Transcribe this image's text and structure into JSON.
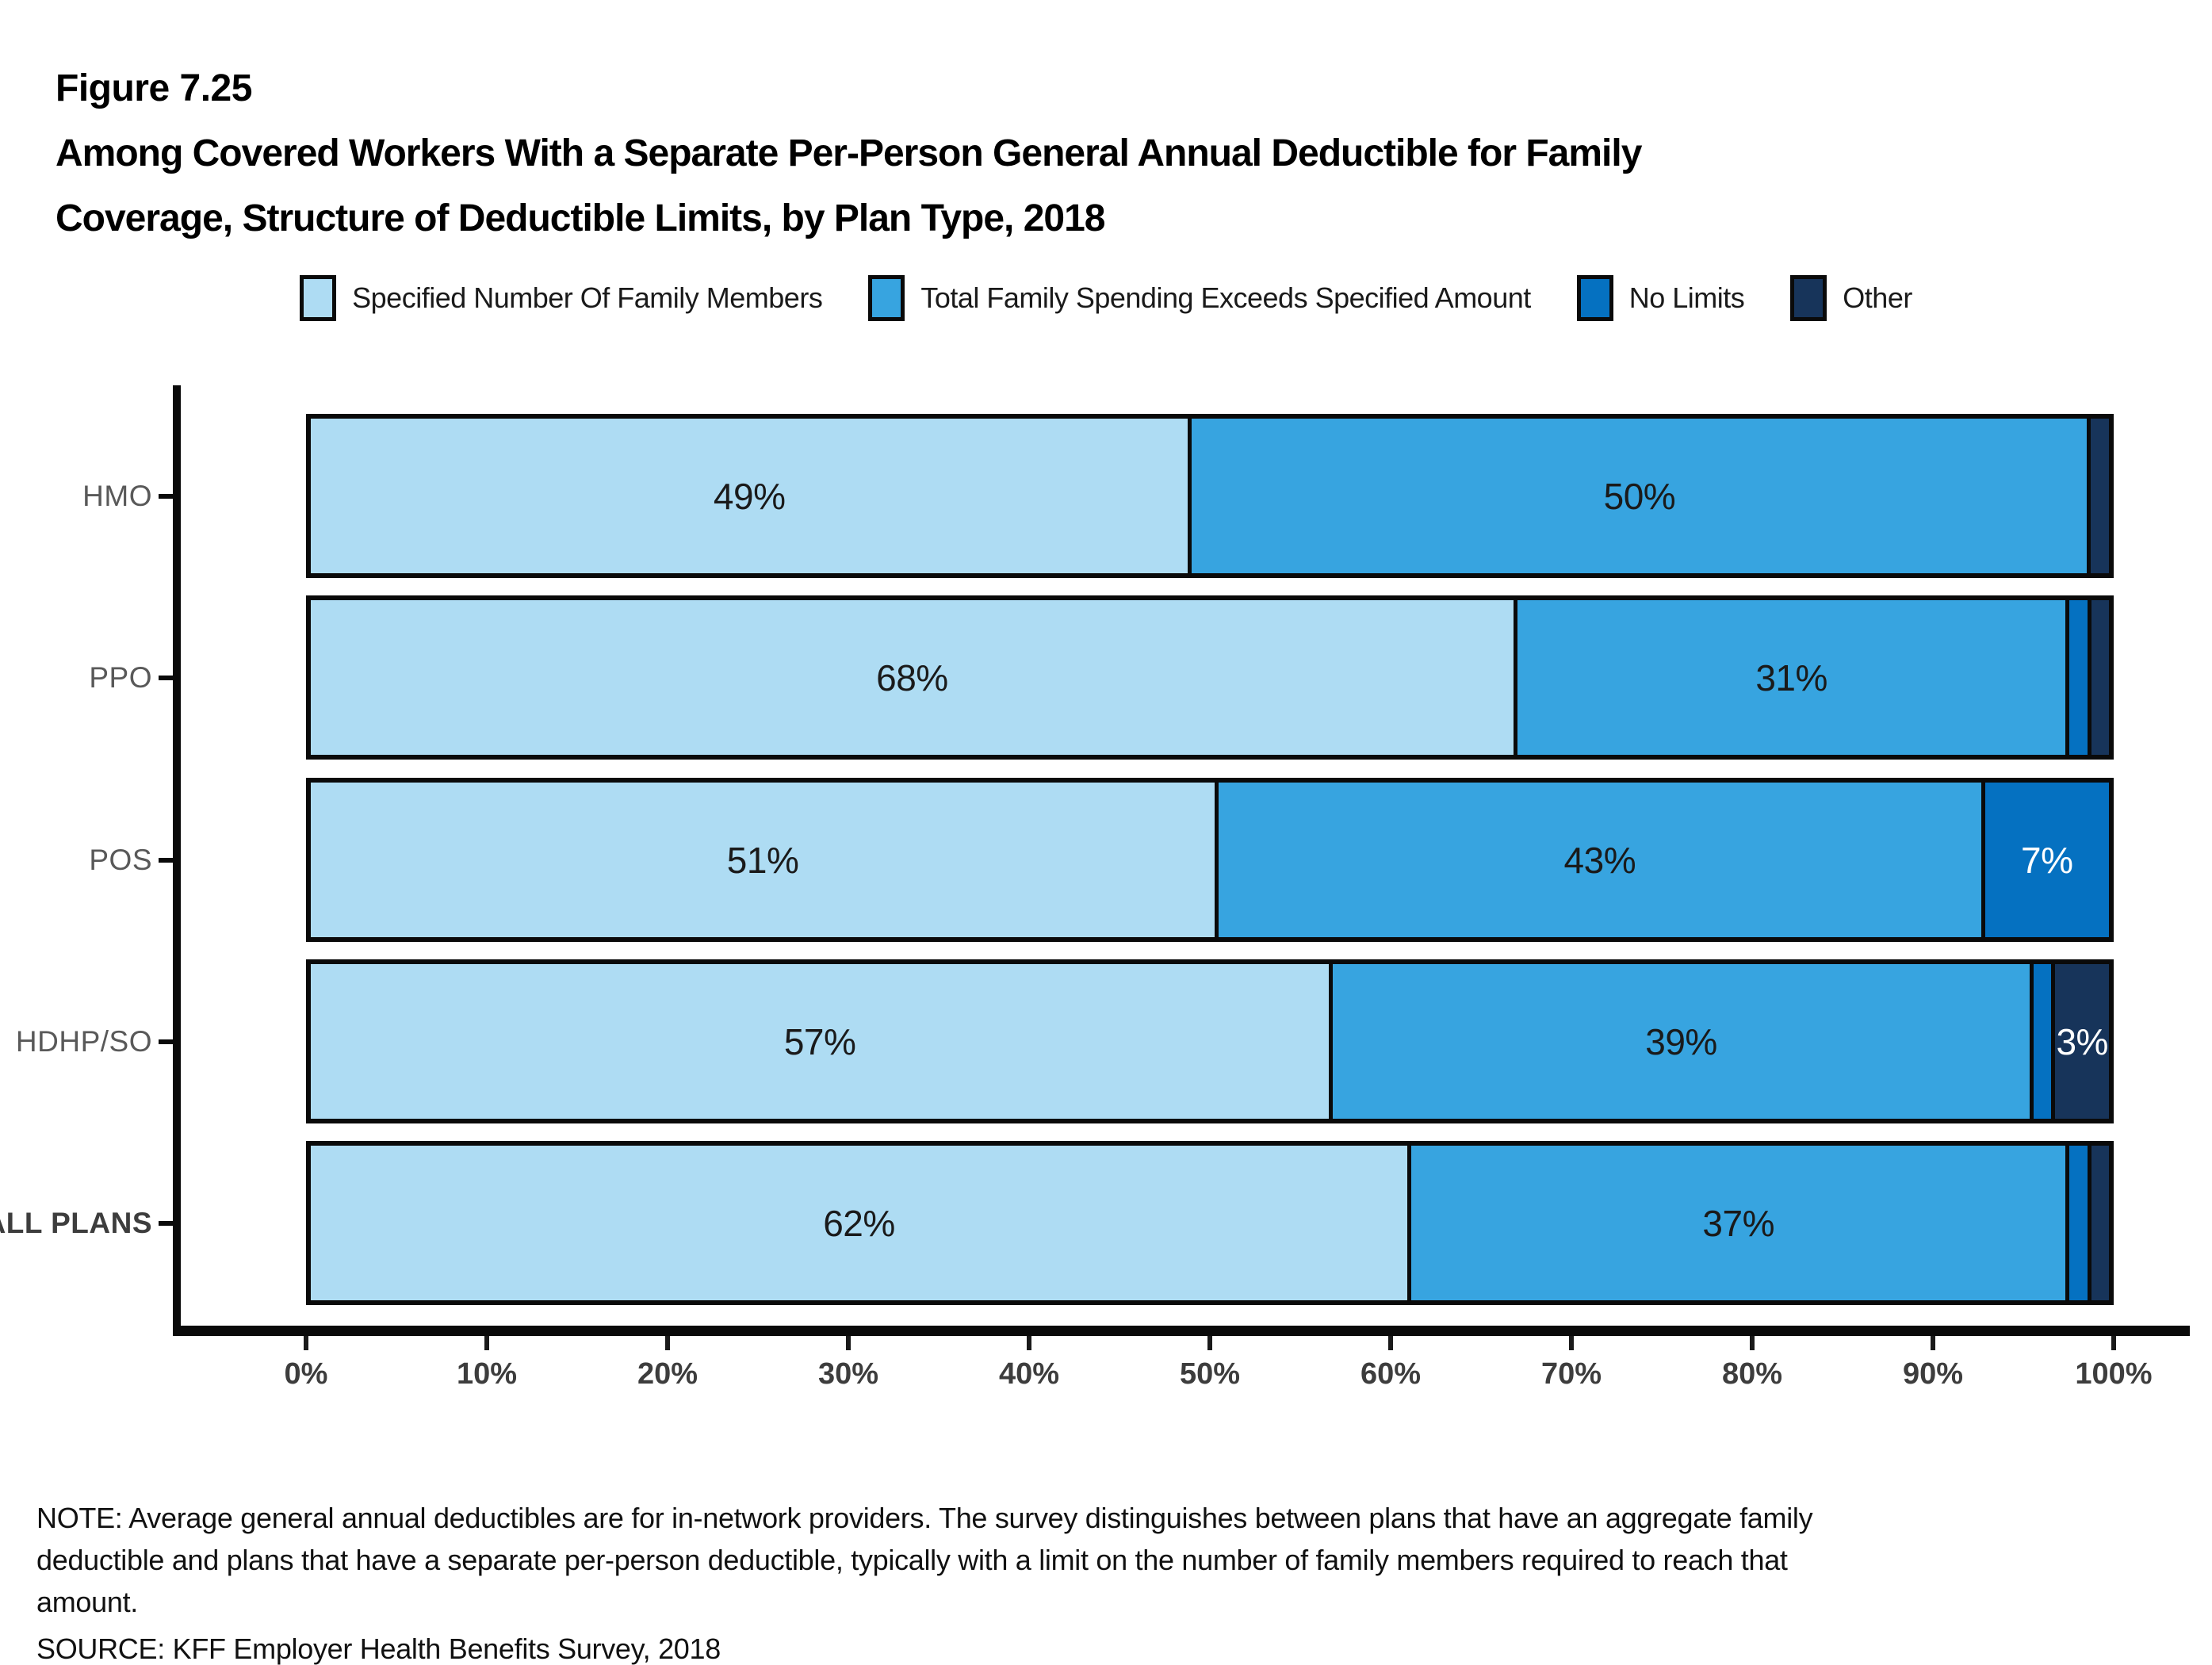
{
  "figure_label": "Figure 7.25",
  "title_line1": "Among Covered Workers With a Separate Per-Person General Annual Deductible for Family",
  "title_line2": "Coverage, Structure of Deductible Limits, by Plan Type, 2018",
  "legend": {
    "items": [
      {
        "label": "Specified Number Of Family Members",
        "color": "#AEDCF3"
      },
      {
        "label": "Total Family Spending Exceeds Specified Amount",
        "color": "#37A4E0"
      },
      {
        "label": "No Limits",
        "color": "#0571C1"
      },
      {
        "label": "Other",
        "color": "#17345A"
      }
    ]
  },
  "chart_data": {
    "type": "bar",
    "orientation": "horizontal",
    "stacked": true,
    "grid": false,
    "legend_position": "top",
    "xlim": [
      0,
      100
    ],
    "x_ticks": [
      "0%",
      "10%",
      "20%",
      "30%",
      "40%",
      "50%",
      "60%",
      "70%",
      "80%",
      "90%",
      "100%"
    ],
    "categories": [
      {
        "label": "HMO",
        "bold": false
      },
      {
        "label": "PPO",
        "bold": false
      },
      {
        "label": "POS",
        "bold": false
      },
      {
        "label": "HDHP/SO",
        "bold": false
      },
      {
        "label": "ALL PLANS",
        "bold": true
      }
    ],
    "series": [
      {
        "name": "Specified Number Of Family Members",
        "color": "#AEDCF3",
        "label_color": "#1a1a1a",
        "values": [
          49,
          68,
          51,
          57,
          62
        ],
        "labels": [
          "49%",
          "68%",
          "51%",
          "57%",
          "62%"
        ]
      },
      {
        "name": "Total Family Spending Exceeds Specified Amount",
        "color": "#37A4E0",
        "label_color": "#1a1a1a",
        "values": [
          50,
          31,
          43,
          39,
          37
        ],
        "labels": [
          "50%",
          "31%",
          "43%",
          "39%",
          "37%"
        ]
      },
      {
        "name": "No Limits",
        "color": "#0571C1",
        "label_color": "#FFFFFF",
        "values": [
          0,
          1,
          7,
          1,
          1
        ],
        "labels": [
          "",
          "",
          "7%",
          "",
          ""
        ]
      },
      {
        "name": "Other",
        "color": "#17345A",
        "label_color": "#FFFFFF",
        "values": [
          1,
          1,
          0,
          3,
          1
        ],
        "labels": [
          "",
          "",
          "",
          "3%",
          ""
        ]
      }
    ]
  },
  "notes": {
    "note_lines": [
      "NOTE: Average general annual deductibles are for in-network providers. The survey distinguishes between plans that have an aggregate family",
      "deductible and plans that have a separate per-person deductible, typically with a limit on the number of family members required to reach that",
      "amount."
    ],
    "source": "SOURCE: KFF Employer Health Benefits Survey, 2018"
  }
}
